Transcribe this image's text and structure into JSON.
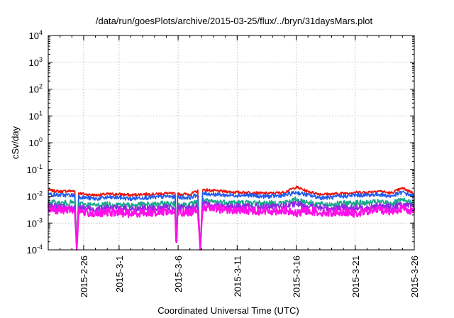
{
  "chart_data": {
    "type": "line",
    "title": "/data/run/goesPlots/archive/2015-03-25/flux/../bryn/31daysMars.plot",
    "xlabel": "Coordinated Universal Time (UTC)",
    "ylabel": "cSv/day",
    "y_scale": "log",
    "ylim": [
      0.0001,
      10000
    ],
    "xlim": [
      "2015-02-23",
      "2015-03-26"
    ],
    "grid": true,
    "legend": "none",
    "y_ticks": [
      {
        "value": 0.0001,
        "base": "10",
        "exp": "-4"
      },
      {
        "value": 0.001,
        "base": "10",
        "exp": "-3"
      },
      {
        "value": 0.01,
        "base": "10",
        "exp": "-2"
      },
      {
        "value": 0.1,
        "base": "10",
        "exp": "-1"
      },
      {
        "value": 1,
        "base": "10",
        "exp": "0"
      },
      {
        "value": 10,
        "base": "10",
        "exp": "1"
      },
      {
        "value": 100,
        "base": "10",
        "exp": "2"
      },
      {
        "value": 1000,
        "base": "10",
        "exp": "3"
      },
      {
        "value": 10000,
        "base": "10",
        "exp": "4"
      }
    ],
    "x_ticks": [
      {
        "date": "2015-02-26",
        "label": "2015-2-26"
      },
      {
        "date": "2015-03-01",
        "label": "2015-3-1"
      },
      {
        "date": "2015-03-06",
        "label": "2015-3-6"
      },
      {
        "date": "2015-03-11",
        "label": "2015-3-11"
      },
      {
        "date": "2015-03-16",
        "label": "2015-3-16"
      },
      {
        "date": "2015-03-21",
        "label": "2015-3-21"
      },
      {
        "date": "2015-03-26",
        "label": "2015-3-26"
      }
    ],
    "series": [
      {
        "color": "#e8140c",
        "x": [
          "2015-02-23",
          "2015-02-24",
          "2015-02-25",
          "2015-02-26",
          "2015-02-27",
          "2015-02-28",
          "2015-03-01",
          "2015-03-02",
          "2015-03-03",
          "2015-03-04",
          "2015-03-05",
          "2015-03-06",
          "2015-03-07",
          "2015-03-08",
          "2015-03-09",
          "2015-03-10",
          "2015-03-11",
          "2015-03-12",
          "2015-03-13",
          "2015-03-14",
          "2015-03-15",
          "2015-03-16",
          "2015-03-17",
          "2015-03-18",
          "2015-03-19",
          "2015-03-20",
          "2015-03-21",
          "2015-03-22",
          "2015-03-23",
          "2015-03-24",
          "2015-03-25",
          "2015-03-26"
        ],
        "values": [
          0.017,
          0.015,
          0.016,
          0.012,
          0.011,
          0.012,
          0.012,
          0.011,
          0.012,
          0.012,
          0.013,
          0.012,
          0.012,
          0.018,
          0.016,
          0.015,
          0.014,
          0.014,
          0.013,
          0.013,
          0.014,
          0.022,
          0.015,
          0.012,
          0.012,
          0.013,
          0.014,
          0.014,
          0.016,
          0.013,
          0.02,
          0.013
        ]
      },
      {
        "color": "#1f5cf0",
        "x": [
          "2015-02-23",
          "2015-02-24",
          "2015-02-25",
          "2015-02-26",
          "2015-02-27",
          "2015-02-28",
          "2015-03-01",
          "2015-03-02",
          "2015-03-03",
          "2015-03-04",
          "2015-03-05",
          "2015-03-06",
          "2015-03-07",
          "2015-03-08",
          "2015-03-09",
          "2015-03-10",
          "2015-03-11",
          "2015-03-12",
          "2015-03-13",
          "2015-03-14",
          "2015-03-15",
          "2015-03-16",
          "2015-03-17",
          "2015-03-18",
          "2015-03-19",
          "2015-03-20",
          "2015-03-21",
          "2015-03-22",
          "2015-03-23",
          "2015-03-24",
          "2015-03-25",
          "2015-03-26"
        ],
        "values": [
          0.012,
          0.011,
          0.011,
          0.009,
          0.008,
          0.009,
          0.009,
          0.008,
          0.009,
          0.009,
          0.01,
          0.009,
          0.009,
          0.013,
          0.012,
          0.011,
          0.011,
          0.011,
          0.01,
          0.01,
          0.011,
          0.014,
          0.011,
          0.009,
          0.009,
          0.01,
          0.011,
          0.011,
          0.012,
          0.01,
          0.014,
          0.01
        ]
      },
      {
        "color": "#1aa88a",
        "x": [
          "2015-02-23",
          "2015-02-24",
          "2015-02-25",
          "2015-02-26",
          "2015-02-27",
          "2015-02-28",
          "2015-03-01",
          "2015-03-02",
          "2015-03-03",
          "2015-03-04",
          "2015-03-05",
          "2015-03-06",
          "2015-03-07",
          "2015-03-08",
          "2015-03-09",
          "2015-03-10",
          "2015-03-11",
          "2015-03-12",
          "2015-03-13",
          "2015-03-14",
          "2015-03-15",
          "2015-03-16",
          "2015-03-17",
          "2015-03-18",
          "2015-03-19",
          "2015-03-20",
          "2015-03-21",
          "2015-03-22",
          "2015-03-23",
          "2015-03-24",
          "2015-03-25",
          "2015-03-26"
        ],
        "values": [
          0.006,
          0.0055,
          0.0058,
          0.005,
          0.0046,
          0.005,
          0.005,
          0.0046,
          0.005,
          0.005,
          0.0054,
          0.005,
          0.005,
          0.0068,
          0.0062,
          0.006,
          0.0058,
          0.0058,
          0.0055,
          0.0055,
          0.0058,
          0.0075,
          0.006,
          0.005,
          0.005,
          0.0054,
          0.0058,
          0.0056,
          0.0062,
          0.0054,
          0.007,
          0.0054
        ]
      },
      {
        "color": "#8a2be2",
        "x": [
          "2015-02-23",
          "2015-02-24",
          "2015-02-25",
          "2015-02-26",
          "2015-02-27",
          "2015-02-28",
          "2015-03-01",
          "2015-03-02",
          "2015-03-03",
          "2015-03-04",
          "2015-03-05",
          "2015-03-06",
          "2015-03-07",
          "2015-03-08",
          "2015-03-09",
          "2015-03-10",
          "2015-03-11",
          "2015-03-12",
          "2015-03-13",
          "2015-03-14",
          "2015-03-15",
          "2015-03-16",
          "2015-03-17",
          "2015-03-18",
          "2015-03-19",
          "2015-03-20",
          "2015-03-21",
          "2015-03-22",
          "2015-03-23",
          "2015-03-24",
          "2015-03-25",
          "2015-03-26"
        ],
        "values": [
          0.0045,
          0.004,
          0.0042,
          0.0036,
          0.0033,
          0.0036,
          0.0036,
          0.0033,
          0.0036,
          0.0036,
          0.0038,
          0.0036,
          0.0036,
          0.005,
          0.0046,
          0.0044,
          0.0042,
          0.0042,
          0.004,
          0.004,
          0.0042,
          0.0052,
          0.0043,
          0.0036,
          0.0036,
          0.0038,
          0.0035,
          0.004,
          0.0044,
          0.0039,
          0.0048,
          0.0039
        ]
      },
      {
        "color": "#ff10e8",
        "x": [
          "2015-02-23",
          "2015-02-24",
          "2015-02-25",
          "2015-02-26",
          "2015-02-27",
          "2015-02-28",
          "2015-03-01",
          "2015-03-02",
          "2015-03-03",
          "2015-03-04",
          "2015-03-05",
          "2015-03-06",
          "2015-03-07",
          "2015-03-08",
          "2015-03-09",
          "2015-03-10",
          "2015-03-11",
          "2015-03-12",
          "2015-03-13",
          "2015-03-14",
          "2015-03-15",
          "2015-03-16",
          "2015-03-17",
          "2015-03-18",
          "2015-03-19",
          "2015-03-20",
          "2015-03-21",
          "2015-03-22",
          "2015-03-23",
          "2015-03-24",
          "2015-03-25",
          "2015-03-26"
        ],
        "values": [
          0.0035,
          0.003,
          0.0032,
          0.0026,
          0.0022,
          0.0025,
          0.0025,
          0.0022,
          0.0025,
          0.0025,
          0.0028,
          0.0025,
          0.0025,
          0.004,
          0.0034,
          0.0032,
          0.003,
          0.003,
          0.0028,
          0.0028,
          0.003,
          0.0022,
          0.003,
          0.0025,
          0.0025,
          0.0027,
          0.0022,
          0.0028,
          0.0032,
          0.0027,
          0.0036,
          0.0027
        ]
      }
    ],
    "dropouts": [
      {
        "start": "2015-02-25 06:00",
        "end": "2015-02-25 14:00",
        "min": 0.0001
      },
      {
        "start": "2015-03-05 18:00",
        "end": "2015-03-05 23:00",
        "min": 0.0001
      },
      {
        "start": "2015-03-07 16:00",
        "end": "2015-03-08 02:00",
        "min": 0.0001
      }
    ]
  }
}
